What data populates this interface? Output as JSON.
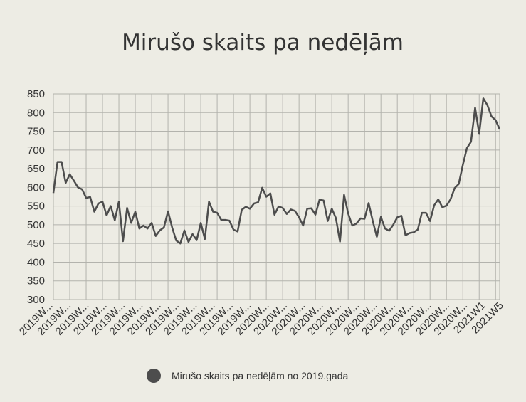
{
  "chart_data": {
    "type": "line",
    "title": "Mirušo skaits pa nedēļām",
    "xlabel": "",
    "ylabel": "",
    "ylim": [
      300,
      850
    ],
    "y_ticks": [
      300,
      350,
      400,
      450,
      500,
      550,
      600,
      650,
      700,
      750,
      800,
      850
    ],
    "x_tick_labels": [
      "2019W...",
      "2019W...",
      "2019W...",
      "2019W...",
      "2019W...",
      "2019W...",
      "2019W...",
      "2019W...",
      "2019W...",
      "2019W...",
      "2019W...",
      "2019W...",
      "2020W...",
      "2020W...",
      "2020W...",
      "2020W...",
      "2020W...",
      "2020W...",
      "2020W...",
      "2020W...",
      "2020W...",
      "2020W...",
      "2020W...",
      "2020W...",
      "2021W1",
      "2021W5"
    ],
    "grid": true,
    "legend_position": "bottom",
    "series": [
      {
        "name": "Mirušo skaits pa nedēļām no 2019.gada",
        "color": "#4d4d4d",
        "values": [
          585,
          668,
          668,
          612,
          635,
          618,
          600,
          595,
          572,
          574,
          535,
          557,
          562,
          525,
          550,
          512,
          562,
          456,
          545,
          505,
          535,
          490,
          498,
          490,
          505,
          470,
          485,
          493,
          536,
          493,
          458,
          450,
          485,
          454,
          475,
          459,
          505,
          462,
          562,
          535,
          532,
          513,
          513,
          511,
          487,
          482,
          540,
          548,
          543,
          557,
          560,
          599,
          575,
          584,
          527,
          549,
          545,
          529,
          541,
          537,
          520,
          498,
          543,
          544,
          527,
          567,
          565,
          510,
          543,
          518,
          455,
          580,
          530,
          498,
          503,
          517,
          516,
          558,
          510,
          468,
          521,
          490,
          484,
          500,
          520,
          524,
          472,
          478,
          480,
          487,
          532,
          532,
          510,
          552,
          568,
          547,
          551,
          568,
          598,
          609,
          660,
          705,
          722,
          813,
          743,
          838,
          820,
          790,
          780,
          755
        ]
      }
    ]
  }
}
